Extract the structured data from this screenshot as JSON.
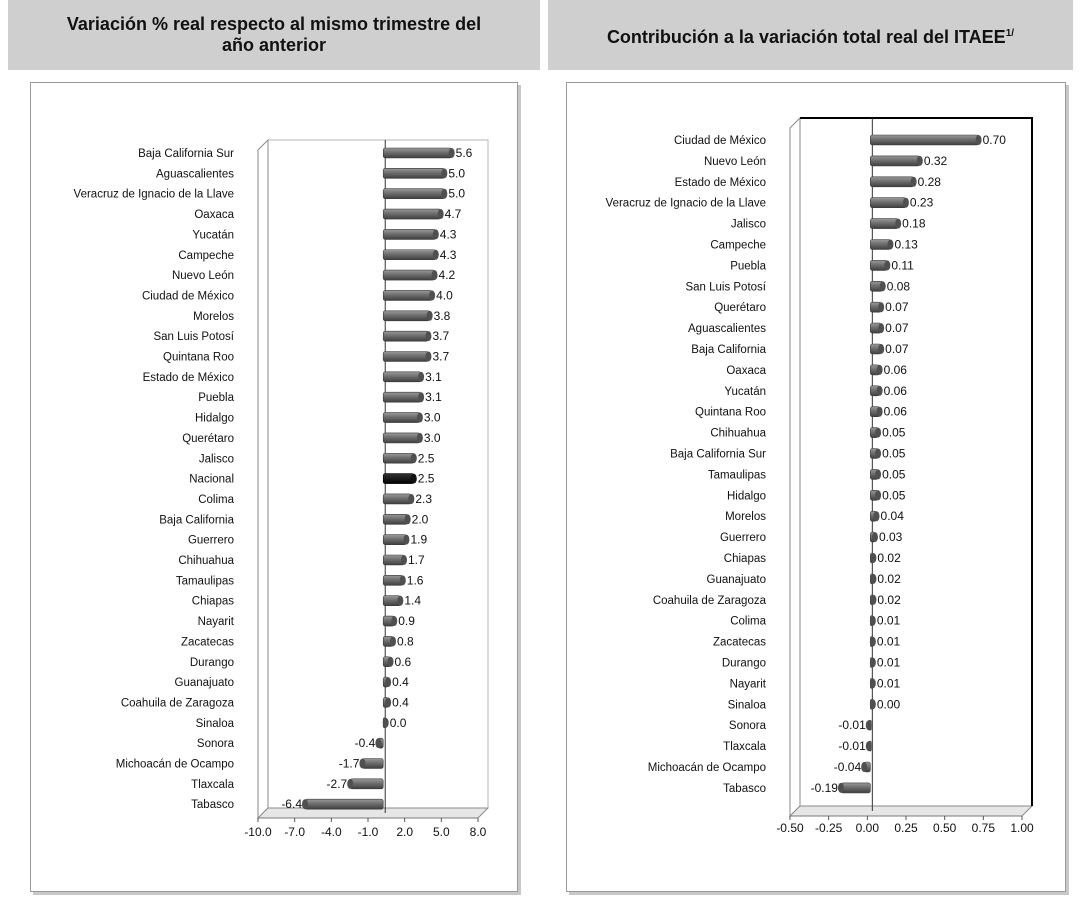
{
  "headers": {
    "left_line1": "Variación % real respecto al mismo trimestre del",
    "left_line2": "año anterior",
    "right_text": "Contribución a la variación total real del ITAEE",
    "right_sup": "1/"
  },
  "colors": {
    "bar": "#777777",
    "bar_dark": "#444444",
    "highlight": "#000000",
    "header_bg": "#cfcfcf"
  },
  "chart_data": [
    {
      "type": "bar",
      "orientation": "horizontal",
      "title": "Variación % real respecto al mismo trimestre del año anterior",
      "categories": [
        "Baja California Sur",
        "Aguascalientes",
        "Veracruz de Ignacio de la Llave",
        "Oaxaca",
        "Yucatán",
        "Campeche",
        "Nuevo León",
        "Ciudad de México",
        "Morelos",
        "San Luis Potosí",
        "Quintana Roo",
        "Estado de México",
        "Puebla",
        "Hidalgo",
        "Querétaro",
        "Jalisco",
        "Nacional",
        "Colima",
        "Baja California",
        "Guerrero",
        "Chihuahua",
        "Tamaulipas",
        "Chiapas",
        "Nayarit",
        "Zacatecas",
        "Durango",
        "Guanajuato",
        "Coahuila de Zaragoza",
        "Sinaloa",
        "Sonora",
        "Michoacán de Ocampo",
        "Tlaxcala",
        "Tabasco"
      ],
      "values": [
        5.6,
        5.0,
        5.0,
        4.7,
        4.3,
        4.3,
        4.2,
        4.0,
        3.8,
        3.7,
        3.7,
        3.1,
        3.1,
        3.0,
        3.0,
        2.5,
        2.5,
        2.3,
        2.0,
        1.9,
        1.7,
        1.6,
        1.4,
        0.9,
        0.8,
        0.6,
        0.4,
        0.4,
        0.0,
        -0.4,
        -1.7,
        -2.7,
        -6.4
      ],
      "labels": [
        "5.6",
        "5.0",
        "5.0",
        "4.7",
        "4.3",
        "4.3",
        "4.2",
        "4.0",
        "3.8",
        "3.7",
        "3.7",
        "3.1",
        "3.1",
        "3.0",
        "3.0",
        "2.5",
        "2.5",
        "2.3",
        "2.0",
        "1.9",
        "1.7",
        "1.6",
        "1.4",
        "0.9",
        "0.8",
        "0.6",
        "0.4",
        "0.4",
        "0.0",
        "-0.4",
        "-1.7",
        "-2.7",
        "-6.4"
      ],
      "highlight": "Nacional",
      "xlim": [
        -10.0,
        8.0
      ],
      "ticks": [
        -10.0,
        -7.0,
        -4.0,
        -1.0,
        2.0,
        5.0,
        8.0
      ],
      "tick_labels": [
        "-10.0",
        "-7.0",
        "-4.0",
        "-1.0",
        "2.0",
        "5.0",
        "8.0"
      ]
    },
    {
      "type": "bar",
      "orientation": "horizontal",
      "title": "Contribución a la variación total real del ITAEE",
      "categories": [
        "Ciudad de México",
        "Nuevo León",
        "Estado de México",
        "Veracruz de Ignacio de la Llave",
        "Jalisco",
        "Campeche",
        "Puebla",
        "San Luis Potosí",
        "Querétaro",
        "Aguascalientes",
        "Baja California",
        "Oaxaca",
        "Yucatán",
        "Quintana Roo",
        "Chihuahua",
        "Baja California Sur",
        "Tamaulipas",
        "Hidalgo",
        "Morelos",
        "Guerrero",
        "Chiapas",
        "Guanajuato",
        "Coahuila de Zaragoza",
        "Colima",
        "Zacatecas",
        "Durango",
        "Nayarit",
        "Sinaloa",
        "Sonora",
        "Tlaxcala",
        "Michoacán de Ocampo",
        "Tabasco"
      ],
      "values": [
        0.7,
        0.32,
        0.28,
        0.23,
        0.18,
        0.13,
        0.11,
        0.08,
        0.07,
        0.07,
        0.07,
        0.06,
        0.06,
        0.06,
        0.05,
        0.05,
        0.05,
        0.05,
        0.04,
        0.03,
        0.02,
        0.02,
        0.02,
        0.01,
        0.01,
        0.01,
        0.01,
        0.0,
        -0.01,
        -0.01,
        -0.04,
        -0.19
      ],
      "labels": [
        "0.70",
        "0.32",
        "0.28",
        "0.23",
        "0.18",
        "0.13",
        "0.11",
        "0.08",
        "0.07",
        "0.07",
        "0.07",
        "0.06",
        "0.06",
        "0.06",
        "0.05",
        "0.05",
        "0.05",
        "0.05",
        "0.04",
        "0.03",
        "0.02",
        "0.02",
        "0.02",
        "0.01",
        "0.01",
        "0.01",
        "0.01",
        "0.00",
        "-0.01",
        "-0.01",
        "-0.04",
        "-0.19"
      ],
      "xlim": [
        -0.5,
        1.0
      ],
      "ticks": [
        -0.5,
        -0.25,
        0.0,
        0.25,
        0.5,
        0.75,
        1.0
      ],
      "tick_labels": [
        "-0.50",
        "-0.25",
        "0.00",
        "0.25",
        "0.50",
        "0.75",
        "1.00"
      ]
    }
  ]
}
